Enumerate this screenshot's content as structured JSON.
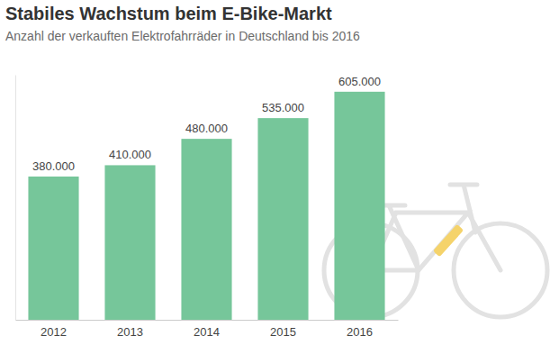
{
  "chart_data": {
    "type": "bar",
    "title": "Stabiles Wachstum beim E-Bike-Markt",
    "subtitle": "Anzahl der verkauften Elektrofahrräder in Deutschland bis 2016",
    "categories": [
      "2012",
      "2013",
      "2014",
      "2015",
      "2016"
    ],
    "values": [
      380000,
      410000,
      480000,
      535000,
      605000
    ],
    "value_labels": [
      "380.000",
      "410.000",
      "480.000",
      "535.000",
      "605.000"
    ],
    "color": "#76c69a",
    "ylim": [
      0,
      650000
    ],
    "data_labels": true,
    "tick_labels": "x",
    "grid": false
  }
}
